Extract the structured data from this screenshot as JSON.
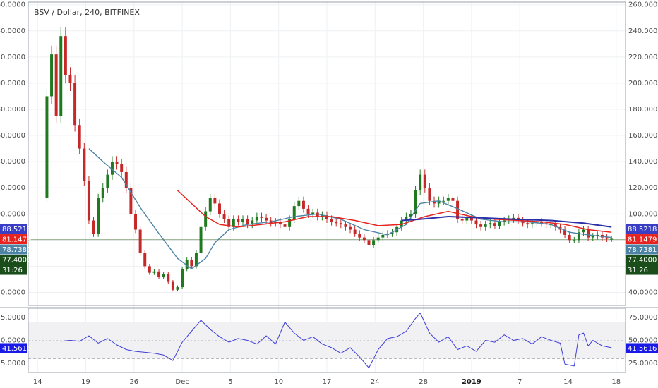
{
  "chart_title": "BSV / Dollar, 240, BITFINEX",
  "chart_data": [
    {
      "type": "candlestick",
      "title": "BSV / Dollar, 240, BITFINEX",
      "ylim": [
        30,
        262
      ],
      "y_ticks": [
        "40.0000",
        "60.0000",
        "80.0000",
        "100.0000",
        "120.0000",
        "140.0000",
        "160.0000",
        "180.0000",
        "200.0000",
        "220.0000",
        "240.0000",
        "260.0000"
      ],
      "y_tick_values": [
        40,
        60,
        80,
        100,
        120,
        140,
        160,
        180,
        200,
        220,
        240,
        260
      ],
      "x_ticks": [
        "14",
        "19",
        "26",
        "Dec",
        "5",
        "10",
        "17",
        "24",
        "28",
        "2019",
        "7",
        "14",
        "18"
      ],
      "x_tick_bold": [
        false,
        false,
        false,
        false,
        false,
        false,
        false,
        false,
        false,
        true,
        false,
        false,
        false
      ],
      "price_series": [
        {
          "x": 0,
          "y": 112
        },
        {
          "x": 2,
          "y": 190
        },
        {
          "x": 3,
          "y": 222
        },
        {
          "x": 4,
          "y": 175
        },
        {
          "x": 5,
          "y": 236
        },
        {
          "x": 6,
          "y": 206
        },
        {
          "x": 7,
          "y": 200
        },
        {
          "x": 8,
          "y": 168
        },
        {
          "x": 9,
          "y": 150
        },
        {
          "x": 10,
          "y": 125
        },
        {
          "x": 11,
          "y": 95
        },
        {
          "x": 12,
          "y": 85
        },
        {
          "x": 13,
          "y": 112
        },
        {
          "x": 14,
          "y": 120
        },
        {
          "x": 15,
          "y": 130
        },
        {
          "x": 16,
          "y": 140
        },
        {
          "x": 17,
          "y": 138
        },
        {
          "x": 18,
          "y": 132
        },
        {
          "x": 19,
          "y": 120
        },
        {
          "x": 20,
          "y": 100
        },
        {
          "x": 21,
          "y": 88
        },
        {
          "x": 22,
          "y": 70
        },
        {
          "x": 23,
          "y": 60
        },
        {
          "x": 24,
          "y": 55
        },
        {
          "x": 25,
          "y": 56
        },
        {
          "x": 26,
          "y": 52
        },
        {
          "x": 27,
          "y": 54
        },
        {
          "x": 28,
          "y": 48
        },
        {
          "x": 29,
          "y": 42
        },
        {
          "x": 30,
          "y": 44
        },
        {
          "x": 31,
          "y": 58
        },
        {
          "x": 32,
          "y": 65
        },
        {
          "x": 33,
          "y": 60
        },
        {
          "x": 34,
          "y": 70
        },
        {
          "x": 35,
          "y": 90
        },
        {
          "x": 36,
          "y": 102
        },
        {
          "x": 37,
          "y": 112
        },
        {
          "x": 38,
          "y": 108
        },
        {
          "x": 39,
          "y": 100
        },
        {
          "x": 40,
          "y": 96
        },
        {
          "x": 41,
          "y": 90
        },
        {
          "x": 42,
          "y": 96
        },
        {
          "x": 43,
          "y": 94
        },
        {
          "x": 44,
          "y": 96
        },
        {
          "x": 45,
          "y": 92
        },
        {
          "x": 46,
          "y": 95
        },
        {
          "x": 47,
          "y": 98
        },
        {
          "x": 48,
          "y": 97
        },
        {
          "x": 49,
          "y": 95
        },
        {
          "x": 50,
          "y": 93
        },
        {
          "x": 51,
          "y": 94
        },
        {
          "x": 52,
          "y": 92
        },
        {
          "x": 53,
          "y": 90
        },
        {
          "x": 54,
          "y": 96
        },
        {
          "x": 55,
          "y": 106
        },
        {
          "x": 56,
          "y": 110
        },
        {
          "x": 57,
          "y": 104
        },
        {
          "x": 58,
          "y": 100
        },
        {
          "x": 59,
          "y": 101
        },
        {
          "x": 60,
          "y": 98
        },
        {
          "x": 61,
          "y": 99
        },
        {
          "x": 62,
          "y": 96
        },
        {
          "x": 63,
          "y": 94
        },
        {
          "x": 64,
          "y": 93
        },
        {
          "x": 65,
          "y": 92
        },
        {
          "x": 66,
          "y": 90
        },
        {
          "x": 67,
          "y": 88
        },
        {
          "x": 68,
          "y": 85
        },
        {
          "x": 69,
          "y": 82
        },
        {
          "x": 70,
          "y": 80
        },
        {
          "x": 71,
          "y": 76
        },
        {
          "x": 72,
          "y": 80
        },
        {
          "x": 73,
          "y": 82
        },
        {
          "x": 74,
          "y": 84
        },
        {
          "x": 75,
          "y": 85
        },
        {
          "x": 76,
          "y": 86
        },
        {
          "x": 77,
          "y": 90
        },
        {
          "x": 78,
          "y": 95
        },
        {
          "x": 79,
          "y": 98
        },
        {
          "x": 80,
          "y": 100
        },
        {
          "x": 81,
          "y": 118
        },
        {
          "x": 82,
          "y": 130
        },
        {
          "x": 83,
          "y": 120
        },
        {
          "x": 84,
          "y": 110
        },
        {
          "x": 85,
          "y": 108
        },
        {
          "x": 86,
          "y": 110
        },
        {
          "x": 87,
          "y": 110
        },
        {
          "x": 88,
          "y": 112
        },
        {
          "x": 89,
          "y": 110
        },
        {
          "x": 90,
          "y": 96
        },
        {
          "x": 91,
          "y": 95
        },
        {
          "x": 92,
          "y": 97
        },
        {
          "x": 93,
          "y": 95
        },
        {
          "x": 94,
          "y": 92
        },
        {
          "x": 95,
          "y": 90
        },
        {
          "x": 96,
          "y": 92
        },
        {
          "x": 97,
          "y": 93
        },
        {
          "x": 98,
          "y": 91
        },
        {
          "x": 99,
          "y": 94
        },
        {
          "x": 100,
          "y": 95
        },
        {
          "x": 101,
          "y": 96
        },
        {
          "x": 102,
          "y": 97
        },
        {
          "x": 103,
          "y": 95
        },
        {
          "x": 104,
          "y": 93
        },
        {
          "x": 105,
          "y": 92
        },
        {
          "x": 106,
          "y": 93
        },
        {
          "x": 107,
          "y": 94
        },
        {
          "x": 108,
          "y": 93
        },
        {
          "x": 109,
          "y": 92
        },
        {
          "x": 110,
          "y": 92
        },
        {
          "x": 111,
          "y": 90
        },
        {
          "x": 112,
          "y": 88
        },
        {
          "x": 113,
          "y": 84
        },
        {
          "x": 114,
          "y": 80
        },
        {
          "x": 115,
          "y": 80
        },
        {
          "x": 116,
          "y": 86
        },
        {
          "x": 117,
          "y": 88
        },
        {
          "x": 118,
          "y": 82
        },
        {
          "x": 119,
          "y": 83
        },
        {
          "x": 120,
          "y": 84
        },
        {
          "x": 121,
          "y": 82
        },
        {
          "x": 122,
          "y": 81
        },
        {
          "x": 123,
          "y": 81
        }
      ],
      "ma_short": [
        {
          "x": 11,
          "y": 150
        },
        {
          "x": 14,
          "y": 140
        },
        {
          "x": 18,
          "y": 128
        },
        {
          "x": 22,
          "y": 105
        },
        {
          "x": 26,
          "y": 85
        },
        {
          "x": 30,
          "y": 66
        },
        {
          "x": 33,
          "y": 58
        },
        {
          "x": 36,
          "y": 66
        },
        {
          "x": 38,
          "y": 78
        },
        {
          "x": 41,
          "y": 88
        },
        {
          "x": 45,
          "y": 92
        },
        {
          "x": 50,
          "y": 94
        },
        {
          "x": 55,
          "y": 98
        },
        {
          "x": 60,
          "y": 100
        },
        {
          "x": 65,
          "y": 96
        },
        {
          "x": 70,
          "y": 88
        },
        {
          "x": 75,
          "y": 84
        },
        {
          "x": 79,
          "y": 92
        },
        {
          "x": 82,
          "y": 108
        },
        {
          "x": 86,
          "y": 110
        },
        {
          "x": 90,
          "y": 104
        },
        {
          "x": 95,
          "y": 96
        },
        {
          "x": 100,
          "y": 94
        },
        {
          "x": 105,
          "y": 94
        },
        {
          "x": 110,
          "y": 92
        },
        {
          "x": 114,
          "y": 86
        },
        {
          "x": 118,
          "y": 84
        },
        {
          "x": 123,
          "y": 82
        }
      ],
      "ma_long": [
        {
          "x": 30,
          "y": 118
        },
        {
          "x": 33,
          "y": 108
        },
        {
          "x": 36,
          "y": 98
        },
        {
          "x": 39,
          "y": 92
        },
        {
          "x": 43,
          "y": 90
        },
        {
          "x": 48,
          "y": 92
        },
        {
          "x": 53,
          "y": 94
        },
        {
          "x": 58,
          "y": 98
        },
        {
          "x": 63,
          "y": 98
        },
        {
          "x": 68,
          "y": 95
        },
        {
          "x": 73,
          "y": 91
        },
        {
          "x": 78,
          "y": 92
        },
        {
          "x": 83,
          "y": 98
        },
        {
          "x": 88,
          "y": 102
        },
        {
          "x": 93,
          "y": 98
        },
        {
          "x": 98,
          "y": 96
        },
        {
          "x": 103,
          "y": 95
        },
        {
          "x": 108,
          "y": 94
        },
        {
          "x": 113,
          "y": 92
        },
        {
          "x": 118,
          "y": 88
        },
        {
          "x": 123,
          "y": 86
        }
      ],
      "ma_slow": [
        {
          "x": 78,
          "y": 95
        },
        {
          "x": 82,
          "y": 96
        },
        {
          "x": 88,
          "y": 98
        },
        {
          "x": 95,
          "y": 97
        },
        {
          "x": 102,
          "y": 96
        },
        {
          "x": 110,
          "y": 95
        },
        {
          "x": 117,
          "y": 93
        },
        {
          "x": 123,
          "y": 90
        }
      ],
      "reference_line": 80.3,
      "price_labels": [
        {
          "text": "88.5218",
          "value": 88.5218,
          "color": "#3a3ec4"
        },
        {
          "text": "81.1479",
          "value": 81.1479,
          "color": "#e8231f"
        },
        {
          "text": "78.7381",
          "value": 78.7381,
          "color": "#4d83a5"
        },
        {
          "text": "77.4000",
          "value": 77.4,
          "color": "#1a4d1a"
        },
        {
          "text": "31:26",
          "value": null,
          "color": "#1a4d1a"
        }
      ]
    },
    {
      "type": "line",
      "title": "",
      "ylim": [
        15,
        85
      ],
      "y_ticks": [
        "25.0000",
        "50.0000",
        "75.0000"
      ],
      "y_tick_values": [
        25,
        50,
        75
      ],
      "band": [
        30,
        70
      ],
      "series": [
        {
          "x": 5,
          "y": 49
        },
        {
          "x": 7,
          "y": 50
        },
        {
          "x": 9,
          "y": 49
        },
        {
          "x": 11,
          "y": 55
        },
        {
          "x": 13,
          "y": 47
        },
        {
          "x": 15,
          "y": 52
        },
        {
          "x": 17,
          "y": 45
        },
        {
          "x": 19,
          "y": 40
        },
        {
          "x": 21,
          "y": 38
        },
        {
          "x": 23,
          "y": 37
        },
        {
          "x": 25,
          "y": 36
        },
        {
          "x": 27,
          "y": 34
        },
        {
          "x": 29,
          "y": 28
        },
        {
          "x": 31,
          "y": 48
        },
        {
          "x": 33,
          "y": 60
        },
        {
          "x": 35,
          "y": 72
        },
        {
          "x": 37,
          "y": 62
        },
        {
          "x": 39,
          "y": 54
        },
        {
          "x": 41,
          "y": 48
        },
        {
          "x": 43,
          "y": 52
        },
        {
          "x": 45,
          "y": 50
        },
        {
          "x": 47,
          "y": 46
        },
        {
          "x": 49,
          "y": 55
        },
        {
          "x": 51,
          "y": 46
        },
        {
          "x": 53,
          "y": 70
        },
        {
          "x": 55,
          "y": 58
        },
        {
          "x": 57,
          "y": 50
        },
        {
          "x": 59,
          "y": 54
        },
        {
          "x": 61,
          "y": 46
        },
        {
          "x": 63,
          "y": 42
        },
        {
          "x": 65,
          "y": 36
        },
        {
          "x": 67,
          "y": 42
        },
        {
          "x": 69,
          "y": 32
        },
        {
          "x": 71,
          "y": 20
        },
        {
          "x": 73,
          "y": 40
        },
        {
          "x": 75,
          "y": 52
        },
        {
          "x": 77,
          "y": 54
        },
        {
          "x": 79,
          "y": 60
        },
        {
          "x": 81,
          "y": 74
        },
        {
          "x": 82,
          "y": 80
        },
        {
          "x": 84,
          "y": 58
        },
        {
          "x": 86,
          "y": 48
        },
        {
          "x": 88,
          "y": 54
        },
        {
          "x": 90,
          "y": 40
        },
        {
          "x": 92,
          "y": 44
        },
        {
          "x": 94,
          "y": 38
        },
        {
          "x": 96,
          "y": 50
        },
        {
          "x": 98,
          "y": 48
        },
        {
          "x": 100,
          "y": 56
        },
        {
          "x": 102,
          "y": 50
        },
        {
          "x": 104,
          "y": 52
        },
        {
          "x": 106,
          "y": 46
        },
        {
          "x": 108,
          "y": 54
        },
        {
          "x": 110,
          "y": 50
        },
        {
          "x": 112,
          "y": 47
        },
        {
          "x": 113,
          "y": 24
        },
        {
          "x": 115,
          "y": 22
        },
        {
          "x": 116,
          "y": 56
        },
        {
          "x": 117,
          "y": 58
        },
        {
          "x": 118,
          "y": 44
        },
        {
          "x": 119,
          "y": 50
        },
        {
          "x": 121,
          "y": 44
        },
        {
          "x": 123,
          "y": 42
        }
      ],
      "value_label": {
        "text": "41.5616",
        "value": 41.5616,
        "color": "#1a1ae6"
      }
    }
  ]
}
